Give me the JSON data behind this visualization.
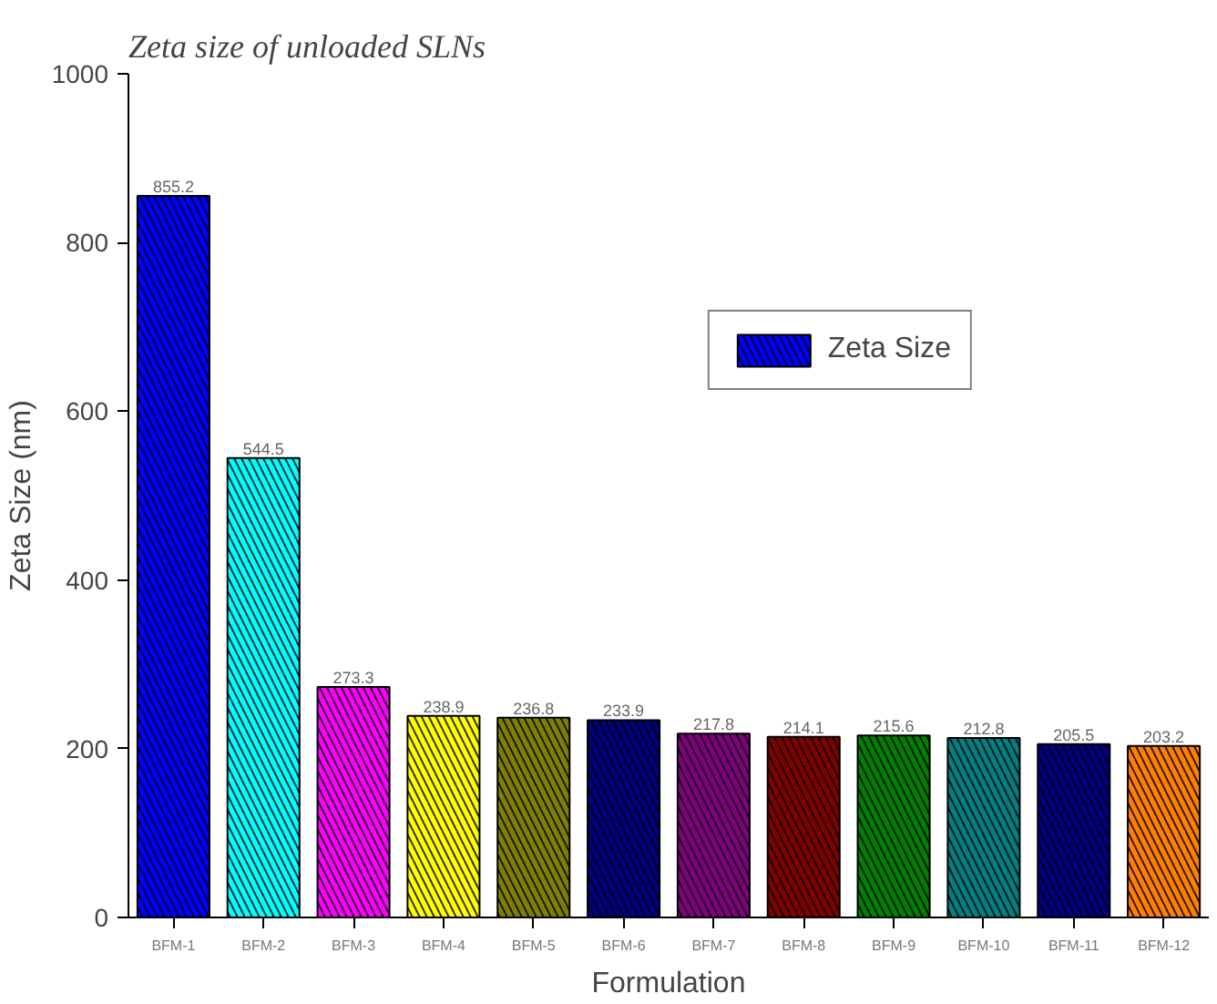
{
  "chart_data": {
    "type": "bar",
    "title": "Zeta size of unloaded SLNs",
    "xlabel": "Formulation",
    "ylabel": "Zeta Size (nm)",
    "categories": [
      "BFM-1",
      "BFM-2",
      "BFM-3",
      "BFM-4",
      "BFM-5",
      "BFM-6",
      "BFM-7",
      "BFM-8",
      "BFM-9",
      "BFM-10",
      "BFM-11",
      "BFM-12"
    ],
    "series": [
      {
        "name": "Zeta Size",
        "values": [
          855.2,
          544.5,
          273.3,
          238.9,
          236.8,
          233.9,
          217.8,
          214.1,
          215.6,
          212.8,
          205.5,
          203.2
        ],
        "colors": [
          "#0000ff",
          "#00ffff",
          "#ff00ff",
          "#ffff00",
          "#808000",
          "#000080",
          "#800080",
          "#800000",
          "#008000",
          "#008080",
          "#000080",
          "#ff8000"
        ]
      }
    ],
    "data_labels": true,
    "ylim": [
      0,
      1000
    ],
    "yticks": [
      0,
      200,
      400,
      600,
      800,
      1000
    ],
    "grid": false,
    "legend": "top right"
  }
}
